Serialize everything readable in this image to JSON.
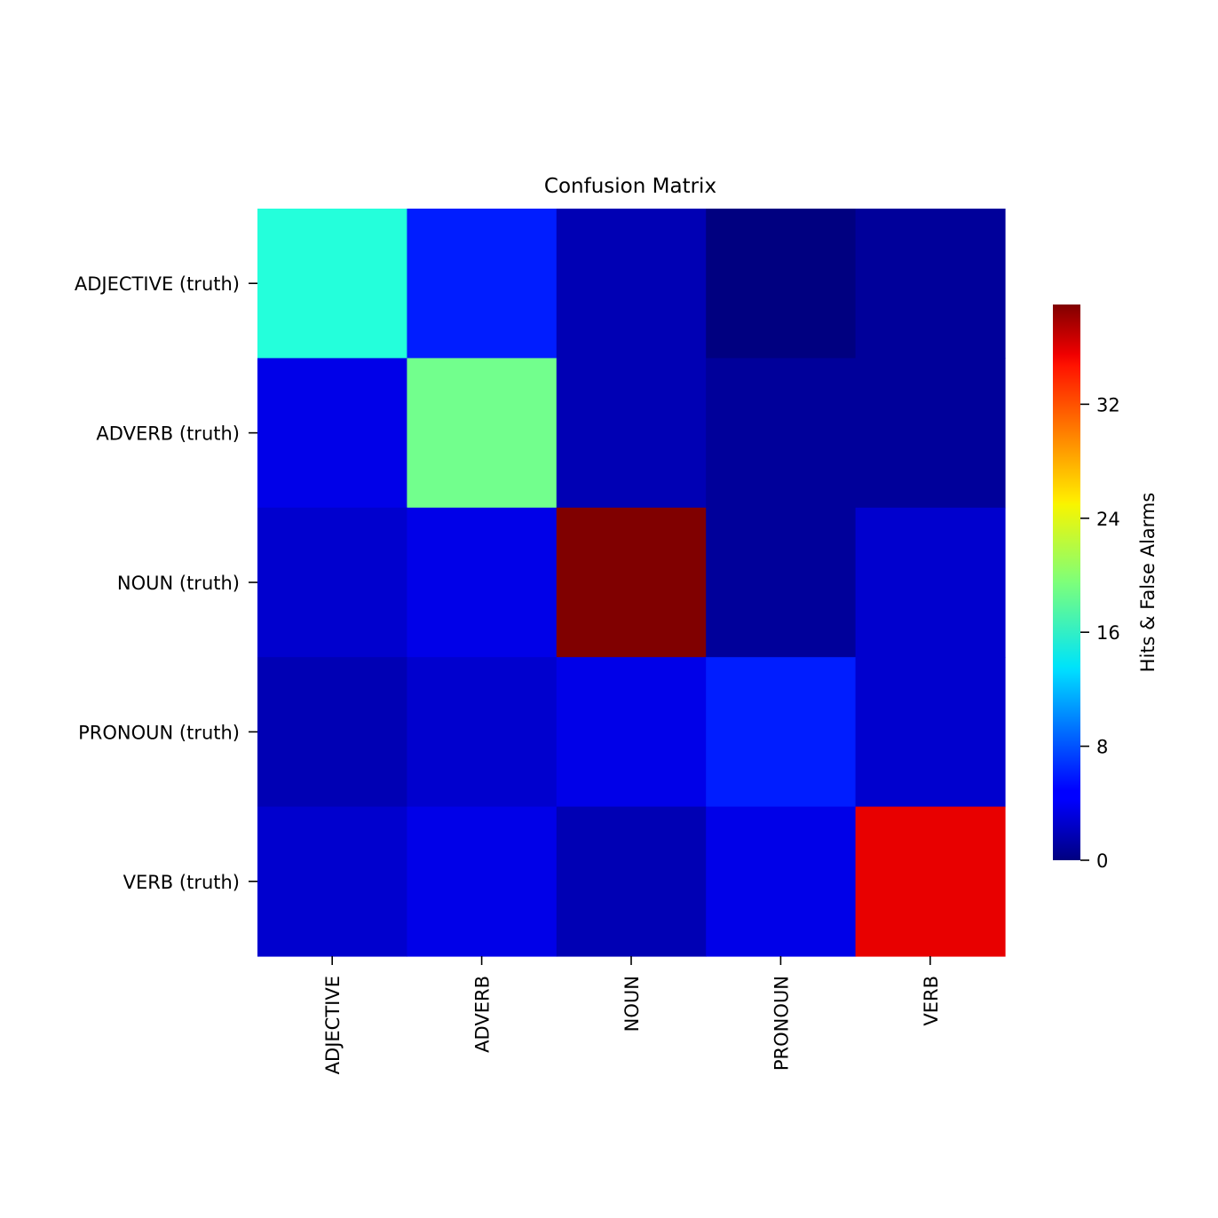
{
  "chart_data": {
    "type": "heatmap",
    "title": "Confusion Matrix",
    "row_labels": [
      "ADJECTIVE (truth)",
      "ADVERB (truth)",
      "NOUN (truth)",
      "PRONOUN (truth)",
      "VERB (truth)"
    ],
    "col_labels": [
      "ADJECTIVE",
      "ADVERB",
      "NOUN",
      "PRONOUN",
      "VERB"
    ],
    "values": [
      [
        16,
        6,
        2,
        0,
        1
      ],
      [
        4,
        19,
        2,
        1,
        1
      ],
      [
        3,
        4,
        39,
        1,
        3
      ],
      [
        2,
        3,
        4,
        6,
        3
      ],
      [
        3,
        4,
        2,
        4,
        35
      ]
    ],
    "colormap": "jet",
    "colorbar": {
      "label": "Hits & False Alarms",
      "range": [
        0,
        39
      ],
      "ticks": [
        0,
        8,
        16,
        24,
        32
      ]
    }
  }
}
